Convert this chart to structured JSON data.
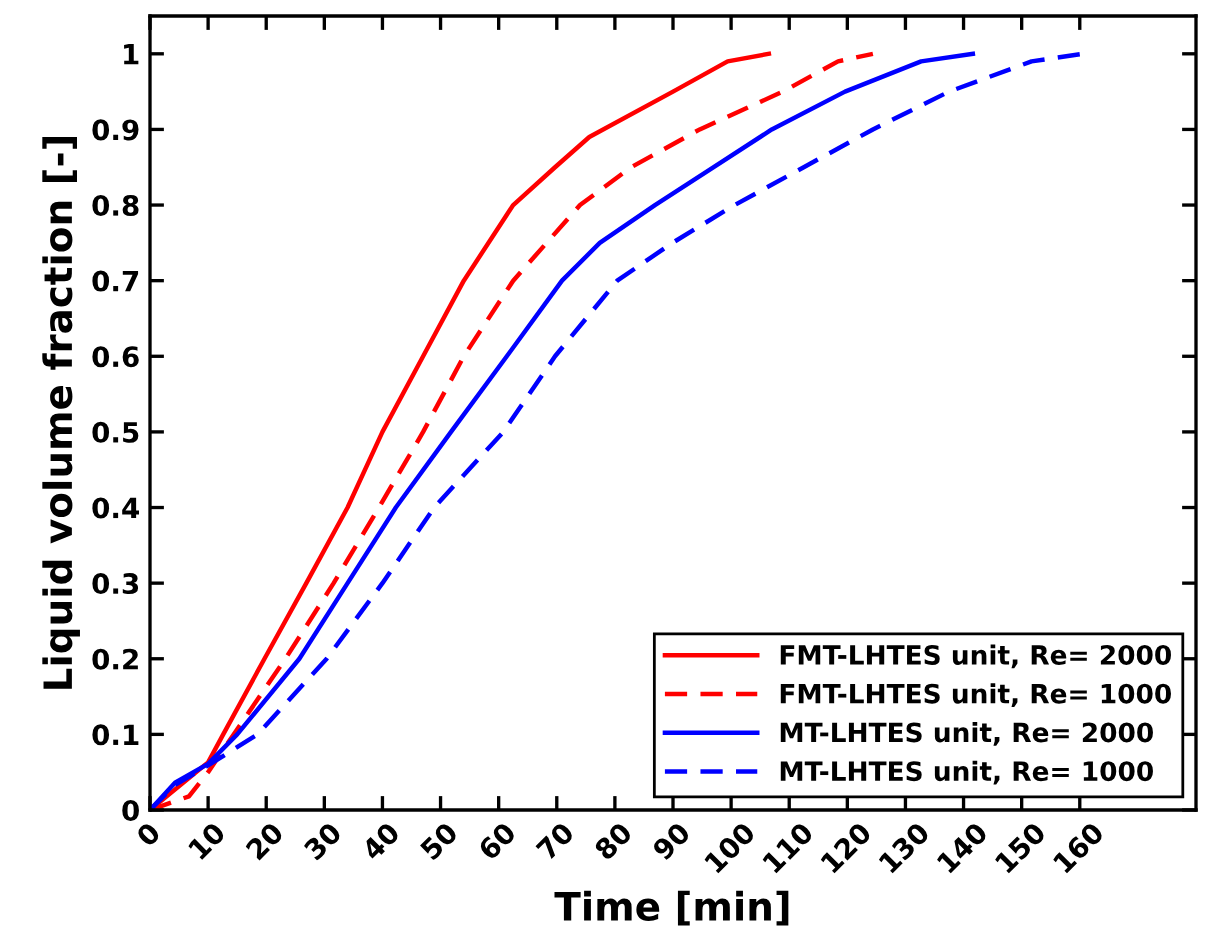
{
  "chart_data": {
    "type": "line",
    "xlabel": "Time [min]",
    "ylabel": "Liquid volume fraction [-]",
    "xlim": [
      0,
      180
    ],
    "ylim": [
      0,
      1.05
    ],
    "xticks": [
      0,
      10,
      20,
      30,
      40,
      50,
      60,
      70,
      80,
      90,
      100,
      110,
      120,
      130,
      140,
      150,
      160
    ],
    "yticks": [
      0,
      0.1,
      0.2,
      0.3,
      0.4,
      0.5,
      0.6,
      0.7,
      0.8,
      0.9,
      1
    ],
    "grid": false,
    "legend": "bottom right",
    "marker": "none",
    "series": [
      {
        "name": "FMT-LHTES unit, Re= 2000",
        "color": "#ff0000",
        "line_style": "solid",
        "x": [
          0,
          10,
          12.6,
          19.7,
          26.9,
          34,
          40,
          47,
          54,
          62.5,
          69.7,
          75.6,
          90,
          99.4,
          106.5
        ],
        "values": [
          0,
          0.063,
          0.1,
          0.2,
          0.3,
          0.4,
          0.5,
          0.6,
          0.7,
          0.8,
          0.85,
          0.89,
          0.95,
          0.99,
          1
        ]
      },
      {
        "name": "FMT-LHTES unit, Re= 1000",
        "color": "#ff0000",
        "line_style": "dashed",
        "x": [
          0,
          6.7,
          10,
          14.4,
          23.3,
          31.6,
          39.4,
          47,
          54,
          62.5,
          74,
          82.8,
          94.6,
          108.9,
          118.4,
          124.4
        ],
        "values": [
          0,
          0.018,
          0.05,
          0.1,
          0.2,
          0.3,
          0.4,
          0.5,
          0.6,
          0.7,
          0.8,
          0.85,
          0.9,
          0.95,
          0.99,
          1
        ]
      },
      {
        "name": "MT-LHTES unit, Re= 2000",
        "color": "#0000ff",
        "line_style": "solid",
        "x": [
          0,
          4.3,
          10,
          15,
          25.7,
          34,
          42.3,
          51.8,
          61.4,
          70.9,
          77.4,
          86.9,
          97,
          107,
          119.6,
          132.7,
          141.6
        ],
        "values": [
          0,
          0.036,
          0.061,
          0.1,
          0.2,
          0.3,
          0.4,
          0.5,
          0.6,
          0.7,
          0.75,
          0.8,
          0.85,
          0.9,
          0.95,
          0.99,
          1
        ]
      },
      {
        "name": "MT-LHTES unit, Re= 1000",
        "color": "#0000ff",
        "line_style": "dashed",
        "x": [
          0,
          4.3,
          10,
          18.5,
          30.4,
          40,
          48.9,
          60.8,
          69.7,
          80.4,
          89.9,
          100.6,
          112.5,
          124.4,
          137.5,
          151.7,
          160.6
        ],
        "values": [
          0,
          0.033,
          0.059,
          0.1,
          0.2,
          0.3,
          0.4,
          0.5,
          0.6,
          0.7,
          0.75,
          0.8,
          0.85,
          0.9,
          0.95,
          0.99,
          1
        ]
      }
    ]
  }
}
